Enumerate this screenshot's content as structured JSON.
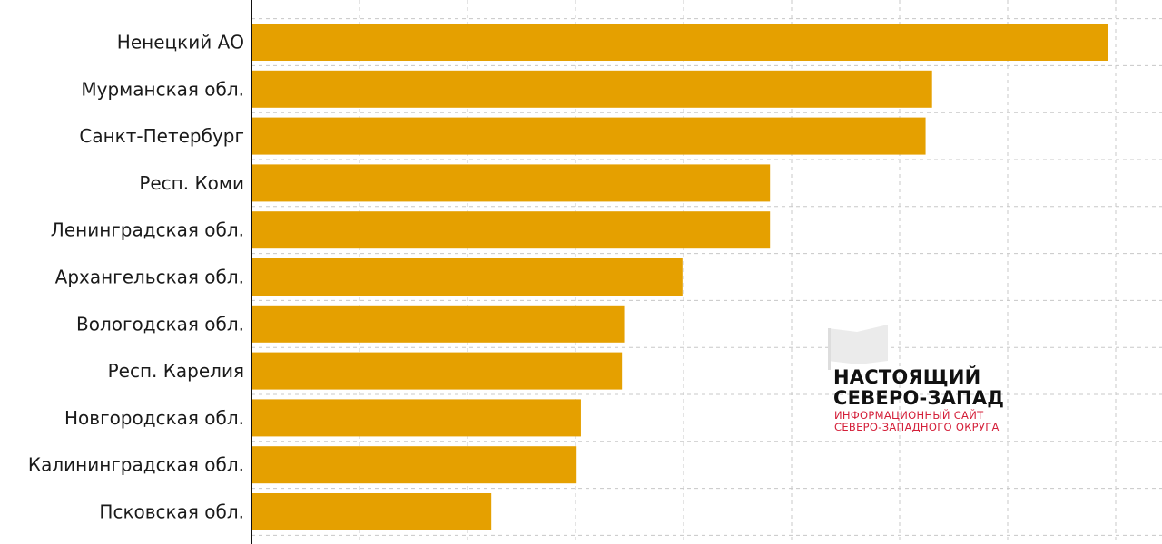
{
  "chart_data": {
    "type": "bar",
    "orientation": "horizontal",
    "categories": [
      "Ненецкий АО",
      "Мурманская обл.",
      "Санкт-Петербург",
      "Респ. Коми",
      "Ленинградская обл.",
      "Архангельская обл.",
      "Вологодская обл.",
      "Респ. Карелия",
      "Новгородская обл.",
      "Калининградская обл.",
      "Псковская обл."
    ],
    "values": [
      7.93,
      6.3,
      6.24,
      4.8,
      4.8,
      3.99,
      3.45,
      3.43,
      3.05,
      3.01,
      2.22
    ],
    "xlim": [
      0,
      8.2
    ],
    "grid": true,
    "colors": {
      "bar": "#e5a000",
      "grid": "#c8c8c8",
      "axis": "#111111"
    }
  },
  "logo": {
    "line1": "НАСТОЯЩИЙ",
    "line2": "СЕВЕРО-ЗАПАД",
    "sub1": "ИНФОРМАЦИОННЫЙ САЙТ",
    "sub2": "СЕВЕРО-ЗАПАДНОГО ОКРУГА",
    "flag_icon": "flag-icon"
  }
}
